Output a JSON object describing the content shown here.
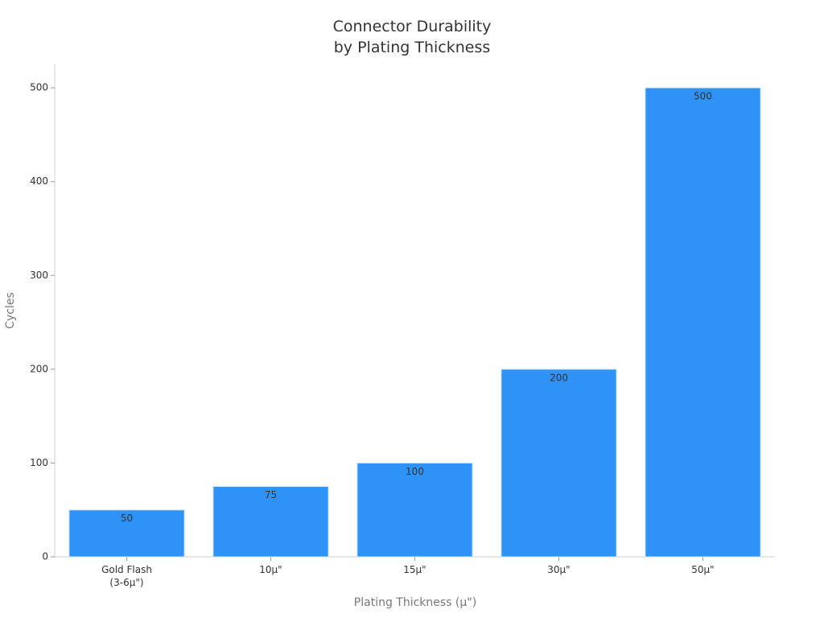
{
  "chart_data": {
    "type": "bar",
    "title": "Connector Durability\nby Plating Thickness",
    "x_label": "Plating Thickness (µ\")",
    "y_label": "Cycles",
    "categories": [
      "Gold Flash\n(3-6µ\")",
      "10µ\"",
      "15µ\"",
      "30µ\"",
      "50µ\""
    ],
    "values": [
      50,
      75,
      100,
      200,
      500
    ],
    "color": "#2f92f7",
    "ylim": [
      0,
      525
    ],
    "yticks": [
      0,
      100,
      200,
      300,
      400,
      500
    ],
    "grid": false
  }
}
